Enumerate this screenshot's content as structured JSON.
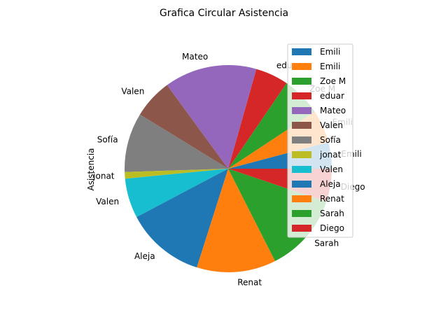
{
  "chart_data": {
    "type": "pie",
    "title": "Grafica Circular Asistencia",
    "ylabel": "Asistencia",
    "start_angle_deg": 0,
    "direction": "counterclockwise",
    "legend_position": "upper right",
    "slices": [
      {
        "label": "Emili",
        "value": 4,
        "color": "#1f77b4"
      },
      {
        "label": "Emili",
        "value": 5,
        "color": "#ff7f0e"
      },
      {
        "label": "Zoe M",
        "value": 6,
        "color": "#2ca02c"
      },
      {
        "label": "eduar",
        "value": 5,
        "color": "#d62728"
      },
      {
        "label": "Mateo",
        "value": 14,
        "color": "#9467bd"
      },
      {
        "label": "Valen",
        "value": 6,
        "color": "#8c564b"
      },
      {
        "label": "Sofía",
        "value": 9,
        "color": "#7f7f7f"
      },
      {
        "label": "jonat",
        "value": 1,
        "color": "#bcbd22"
      },
      {
        "label": "Valen",
        "value": 6,
        "color": "#17becf"
      },
      {
        "label": "Aleja",
        "value": 12,
        "color": "#1f77b4"
      },
      {
        "label": "Renat",
        "value": 12,
        "color": "#ff7f0e"
      },
      {
        "label": "Sarah",
        "value": 12,
        "color": "#2ca02c"
      },
      {
        "label": "Diego",
        "value": 5,
        "color": "#d62728"
      }
    ]
  }
}
